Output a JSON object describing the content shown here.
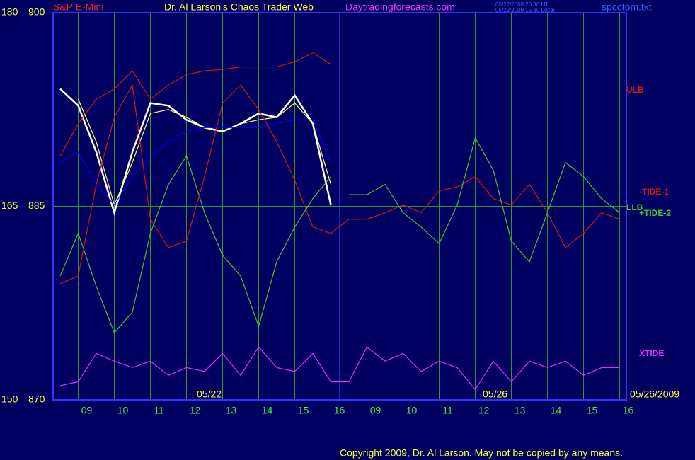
{
  "chart_data": {
    "type": "line",
    "symbol": "S&P E-Mini",
    "title": "Dr. Al Larson's Chaos Trader Web",
    "site": "Daytradingforecasts.com",
    "timestamps": [
      "05/22/2009 20:30 UT",
      "05/22/2009 15:30 Local"
    ],
    "file": "spcctom.txt",
    "copyright": "Copyright 2009, Dr. Al Larson. May not be copied by any means.",
    "annotations": [
      "05/22",
      "05/26",
      "05/26/2009"
    ],
    "categories": [
      null,
      "09",
      null,
      "10",
      null,
      "11",
      null,
      "12",
      null,
      "13",
      null,
      "14",
      null,
      "15",
      null,
      "16",
      null,
      "09",
      null,
      "10",
      null,
      "11",
      null,
      "12",
      null,
      "13",
      null,
      "14",
      null,
      "15",
      null,
      "16"
    ],
    "ylim": [
      870,
      900
    ],
    "yticks": [
      870,
      885,
      900
    ],
    "y2lim": [
      150,
      180
    ],
    "y2ticks": [
      150,
      165,
      180
    ],
    "grid": true,
    "series": [
      {
        "color": "#ffffff",
        "values": [
          894.1,
          892.8,
          889.2,
          884.5,
          889.2,
          893.0,
          892.8,
          891.7,
          891.1,
          890.8,
          891.4,
          892.2,
          891.9,
          893.6,
          891.4,
          885.1,
          null,
          null,
          null,
          null,
          null,
          null,
          null,
          null,
          null,
          null,
          null,
          null,
          null,
          null,
          null,
          null
        ]
      },
      {
        "color": "#ffff66",
        "values": [
          null,
          893.3,
          890.0,
          885.1,
          888.4,
          892.2,
          892.5,
          891.9,
          891.1,
          890.8,
          891.4,
          891.7,
          891.9,
          893.0,
          891.4,
          886.7,
          null,
          null,
          null,
          null,
          null,
          null,
          null,
          null,
          null,
          null,
          null,
          null,
          null,
          null,
          null,
          null
        ]
      },
      {
        "color": "#0000ff",
        "values": [
          888.4,
          889.2,
          886.7,
          885.1,
          887.3,
          888.9,
          890.0,
          890.8,
          891.1,
          891.1,
          891.1,
          891.1,
          891.4,
          891.7,
          891.7,
          888.4,
          null,
          null,
          null,
          null,
          null,
          null,
          null,
          null,
          null,
          null,
          null,
          null,
          null,
          null,
          null,
          null
        ]
      },
      {
        "name": "ULB",
        "color": "#e01010",
        "values": [
          888.9,
          891.4,
          893.3,
          894.1,
          895.5,
          893.3,
          894.4,
          895.2,
          895.5,
          895.6,
          895.8,
          895.8,
          895.8,
          896.2,
          896.9,
          896.0,
          null,
          null,
          null,
          null,
          null,
          null,
          null,
          null,
          null,
          null,
          null,
          null,
          null,
          null,
          null,
          null
        ]
      },
      {
        "name": "LLB",
        "color": "#33cc33",
        "values": [
          879.6,
          882.9,
          878.8,
          875.2,
          876.8,
          882.9,
          886.7,
          888.9,
          884.5,
          881.2,
          879.6,
          875.7,
          880.7,
          883.4,
          885.6,
          887.3,
          null,
          null,
          null,
          null,
          null,
          null,
          null,
          null,
          null,
          null,
          null,
          null,
          null,
          null,
          null,
          null
        ]
      },
      {
        "name": "-TIDE-1",
        "color": "#e01010",
        "values": [
          879.0,
          879.6,
          886.7,
          891.9,
          894.4,
          884.0,
          881.8,
          882.3,
          887.3,
          893.0,
          894.4,
          892.5,
          890.0,
          887.0,
          883.4,
          882.9,
          884.0,
          884.0,
          884.5,
          885.1,
          884.5,
          886.2,
          886.5,
          887.3,
          885.6,
          885.1,
          886.7,
          884.5,
          881.8,
          882.9,
          884.5,
          884.0
        ]
      },
      {
        "name": "+TIDE-2",
        "color": "#33cc33",
        "values": [
          null,
          null,
          null,
          null,
          null,
          null,
          null,
          null,
          null,
          null,
          null,
          null,
          null,
          null,
          null,
          null,
          885.9,
          885.9,
          886.7,
          884.5,
          883.4,
          882.1,
          885.1,
          890.3,
          887.8,
          882.3,
          880.7,
          884.5,
          888.4,
          887.3,
          885.6,
          884.5
        ]
      },
      {
        "name": "XTIDE",
        "color": "#ff22ff",
        "values": [
          871.1,
          871.4,
          873.6,
          873.0,
          872.5,
          873.0,
          871.9,
          872.5,
          872.2,
          873.6,
          871.9,
          874.1,
          872.5,
          872.2,
          873.6,
          871.4,
          871.4,
          874.1,
          873.0,
          873.6,
          872.2,
          873.0,
          872.5,
          870.8,
          873.0,
          871.4,
          873.0,
          872.5,
          873.0,
          871.9,
          872.5,
          872.5
        ]
      }
    ]
  }
}
